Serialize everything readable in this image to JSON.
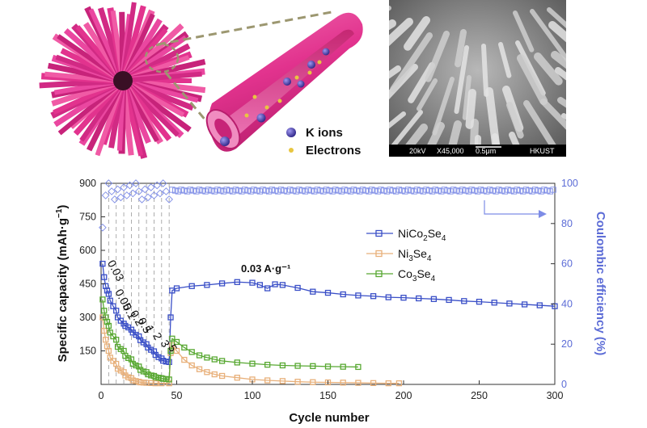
{
  "schematic": {
    "legend_k_ions": "K ions",
    "legend_electrons": "Electrons",
    "colors": {
      "tube": "#e2338e",
      "ion": "#4b3fa8",
      "electron": "#e8c640"
    }
  },
  "sem": {
    "voltage": "20kV",
    "magnification": "X45,000",
    "scale": "0.5μm",
    "institution": "HKUST"
  },
  "chart_data": {
    "type": "scatter",
    "xlabel": "Cycle number",
    "ylabel": "Specific capacity (mAh·g",
    "ylabel_sup": "−1",
    "ylabel_end": ")",
    "y2label": "Coulombic efficiency (%)",
    "xlim": [
      0,
      300
    ],
    "ylim": [
      0,
      900
    ],
    "y2lim": [
      0,
      100
    ],
    "xticks": [
      "0",
      "50",
      "100",
      "150",
      "200",
      "250",
      "300"
    ],
    "yticks": [
      "150",
      "300",
      "450",
      "600",
      "750",
      "900"
    ],
    "y2ticks": [
      "0",
      "20",
      "40",
      "60",
      "80",
      "100"
    ],
    "annotation": "0.03 A·g⁻¹",
    "rate_labels": [
      "0.03",
      "0.05",
      "0.1",
      "0.2",
      "0.5",
      "1",
      "2",
      "3",
      "5"
    ],
    "rate_boundaries": [
      5,
      10,
      15,
      20,
      25,
      30,
      35,
      40,
      45
    ],
    "legend": [
      {
        "base": "NiCo",
        "sub1": "2",
        "mid": "Se",
        "sub2": "4",
        "color": "#3a4fc7"
      },
      {
        "base": "Ni",
        "sub1": "3",
        "mid": "Se",
        "sub2": "4",
        "color": "#e8b07a"
      },
      {
        "base": "Co",
        "sub1": "3",
        "mid": "Se",
        "sub2": "4",
        "color": "#58a832"
      }
    ],
    "colors": {
      "efficiency": "#7d8ce6",
      "right_axis": "#5b6bd6"
    },
    "series": [
      {
        "key": "NiCo2Se4",
        "color": "#3a4fc7",
        "points": [
          [
            1,
            540
          ],
          [
            2,
            480
          ],
          [
            3,
            440
          ],
          [
            4,
            420
          ],
          [
            5,
            405
          ],
          [
            6,
            375
          ],
          [
            8,
            350
          ],
          [
            10,
            330
          ],
          [
            11,
            300
          ],
          [
            13,
            285
          ],
          [
            15,
            272
          ],
          [
            16,
            262
          ],
          [
            18,
            255
          ],
          [
            20,
            245
          ],
          [
            21,
            232
          ],
          [
            23,
            222
          ],
          [
            25,
            215
          ],
          [
            26,
            198
          ],
          [
            28,
            188
          ],
          [
            30,
            180
          ],
          [
            31,
            165
          ],
          [
            33,
            155
          ],
          [
            35,
            148
          ],
          [
            36,
            132
          ],
          [
            38,
            122
          ],
          [
            40,
            116
          ],
          [
            41,
            106
          ],
          [
            43,
            102
          ],
          [
            45,
            100
          ],
          [
            46,
            300
          ],
          [
            47,
            420
          ],
          [
            50,
            430
          ],
          [
            60,
            440
          ],
          [
            70,
            445
          ],
          [
            80,
            452
          ],
          [
            90,
            458
          ],
          [
            100,
            455
          ],
          [
            105,
            445
          ],
          [
            110,
            430
          ],
          [
            115,
            448
          ],
          [
            120,
            445
          ],
          [
            130,
            432
          ],
          [
            140,
            415
          ],
          [
            150,
            410
          ],
          [
            160,
            403
          ],
          [
            170,
            398
          ],
          [
            180,
            395
          ],
          [
            190,
            390
          ],
          [
            200,
            388
          ],
          [
            210,
            385
          ],
          [
            220,
            382
          ],
          [
            230,
            378
          ],
          [
            240,
            373
          ],
          [
            250,
            370
          ],
          [
            260,
            366
          ],
          [
            270,
            362
          ],
          [
            280,
            358
          ],
          [
            290,
            354
          ],
          [
            300,
            350
          ]
        ]
      },
      {
        "key": "Ni3Se4",
        "color": "#e8b07a",
        "points": [
          [
            1,
            300
          ],
          [
            2,
            240
          ],
          [
            3,
            200
          ],
          [
            4,
            170
          ],
          [
            5,
            150
          ],
          [
            6,
            120
          ],
          [
            8,
            105
          ],
          [
            10,
            92
          ],
          [
            11,
            70
          ],
          [
            13,
            62
          ],
          [
            15,
            55
          ],
          [
            16,
            40
          ],
          [
            18,
            32
          ],
          [
            20,
            28
          ],
          [
            21,
            18
          ],
          [
            23,
            15
          ],
          [
            25,
            12
          ],
          [
            26,
            9
          ],
          [
            28,
            8
          ],
          [
            30,
            7
          ],
          [
            33,
            6
          ],
          [
            36,
            5
          ],
          [
            40,
            5
          ],
          [
            45,
            5
          ],
          [
            46,
            140
          ],
          [
            47,
            175
          ],
          [
            50,
            150
          ],
          [
            55,
            110
          ],
          [
            60,
            85
          ],
          [
            65,
            68
          ],
          [
            70,
            55
          ],
          [
            75,
            45
          ],
          [
            80,
            38
          ],
          [
            90,
            30
          ],
          [
            100,
            22
          ],
          [
            110,
            18
          ],
          [
            120,
            15
          ],
          [
            130,
            12
          ],
          [
            140,
            10
          ],
          [
            150,
            9
          ],
          [
            160,
            8
          ],
          [
            170,
            7
          ],
          [
            180,
            6
          ],
          [
            190,
            5
          ],
          [
            197,
            5
          ]
        ]
      },
      {
        "key": "Co3Se4",
        "color": "#58a832",
        "points": [
          [
            1,
            380
          ],
          [
            2,
            330
          ],
          [
            3,
            300
          ],
          [
            4,
            280
          ],
          [
            5,
            262
          ],
          [
            6,
            232
          ],
          [
            8,
            215
          ],
          [
            10,
            200
          ],
          [
            11,
            168
          ],
          [
            13,
            158
          ],
          [
            15,
            150
          ],
          [
            16,
            128
          ],
          [
            18,
            118
          ],
          [
            20,
            112
          ],
          [
            21,
            92
          ],
          [
            23,
            85
          ],
          [
            25,
            80
          ],
          [
            26,
            65
          ],
          [
            28,
            58
          ],
          [
            30,
            55
          ],
          [
            31,
            45
          ],
          [
            33,
            40
          ],
          [
            35,
            38
          ],
          [
            36,
            32
          ],
          [
            38,
            30
          ],
          [
            40,
            28
          ],
          [
            41,
            25
          ],
          [
            43,
            24
          ],
          [
            45,
            22
          ],
          [
            46,
            150
          ],
          [
            47,
            205
          ],
          [
            50,
            190
          ],
          [
            55,
            165
          ],
          [
            60,
            145
          ],
          [
            65,
            130
          ],
          [
            70,
            120
          ],
          [
            75,
            112
          ],
          [
            80,
            105
          ],
          [
            90,
            98
          ],
          [
            100,
            93
          ],
          [
            110,
            88
          ],
          [
            120,
            85
          ],
          [
            130,
            83
          ],
          [
            140,
            82
          ],
          [
            150,
            80
          ],
          [
            160,
            79
          ],
          [
            170,
            78
          ]
        ]
      }
    ]
  }
}
